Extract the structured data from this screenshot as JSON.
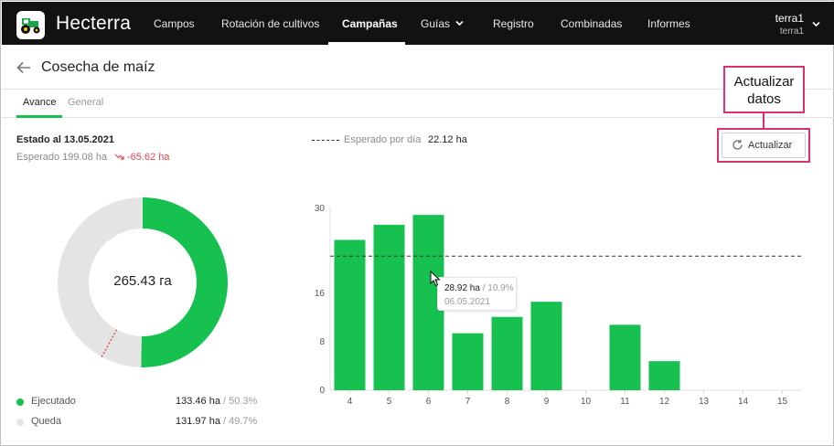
{
  "app": {
    "brand": "Hecterra"
  },
  "nav": {
    "items": [
      {
        "label": "Campos"
      },
      {
        "label": "Rotación de cultivos"
      },
      {
        "label": "Campañas"
      },
      {
        "label": "Guías"
      },
      {
        "label": "Registro"
      },
      {
        "label": "Combinadas"
      },
      {
        "label": "Informes"
      }
    ],
    "active_index": 2
  },
  "user": {
    "name": "terra1",
    "account": "terra1"
  },
  "page": {
    "title": "Cosecha de maíz"
  },
  "tabs": [
    {
      "label": "Avance"
    },
    {
      "label": "General"
    }
  ],
  "status": {
    "title": "Estado al 13.05.2021",
    "expected": "Esperado 199.08 ha",
    "delta": "-65.62 ha"
  },
  "expected_per_day": {
    "label": "Esperado por día",
    "value": "22.12 ha"
  },
  "refresh": {
    "label": "Actualizar"
  },
  "annotation": {
    "line1": "Actualizar",
    "line2": "datos"
  },
  "donut": {
    "center_label": "265.43 га",
    "segments": [
      {
        "name": "Ejecutado",
        "value": "133.46 ha",
        "percent": "50.3%",
        "fraction": 0.503,
        "color": "#16c150"
      },
      {
        "name": "Queda",
        "value": "131.97 ha",
        "percent": "49.7%",
        "fraction": 0.497,
        "color": "#e4e4e4"
      }
    ]
  },
  "tooltip": {
    "value": "28.92 ha",
    "percent": "10.9%",
    "date": "06.05.2021"
  },
  "colors": {
    "accent": "#16c150",
    "negative": "#e5484d",
    "annotation": "#d8346b"
  },
  "chart_data": {
    "type": "bar",
    "categories": [
      "4",
      "5",
      "6",
      "7",
      "8",
      "9",
      "10",
      "11",
      "12",
      "13",
      "14",
      "15"
    ],
    "values": [
      24.8,
      27.3,
      28.92,
      9.4,
      12.1,
      14.6,
      0,
      10.8,
      4.8,
      0,
      0,
      0
    ],
    "y_ticks": [
      "0",
      "8",
      "16",
      "30"
    ],
    "reference_line": 22.12,
    "color": "#16c150"
  }
}
